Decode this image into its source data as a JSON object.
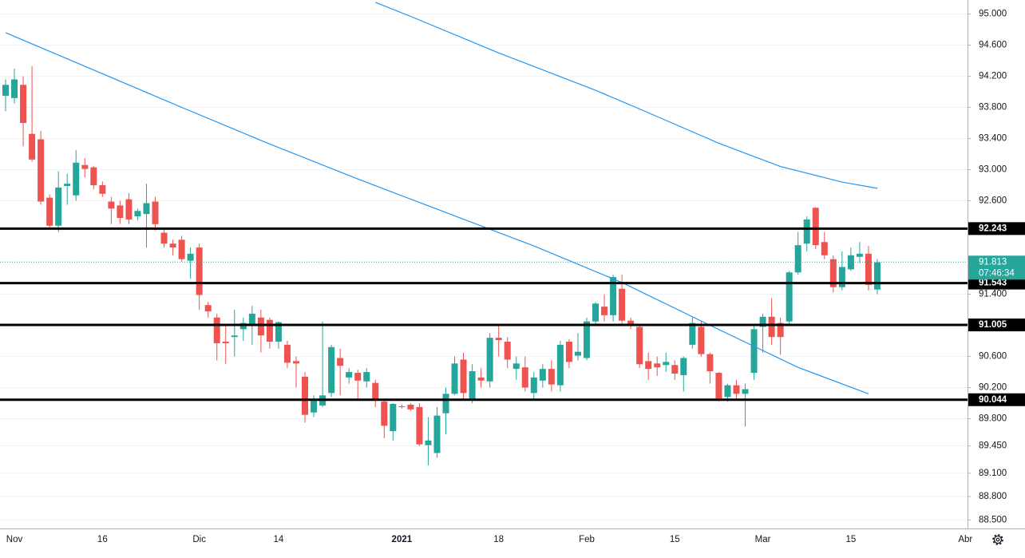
{
  "chart_data": {
    "type": "candlestick",
    "categories": [
      null,
      "Nov",
      null,
      null,
      null,
      null,
      null,
      null,
      null,
      null,
      null,
      "16",
      null,
      null,
      null,
      null,
      null,
      null,
      null,
      null,
      null,
      null,
      "Dic",
      null,
      null,
      null,
      null,
      null,
      null,
      null,
      null,
      "14",
      null,
      null,
      null,
      null,
      null,
      null,
      null,
      null,
      null,
      null,
      null,
      null,
      null,
      "2021",
      null,
      null,
      null,
      null,
      null,
      null,
      null,
      null,
      null,
      null,
      "18",
      null,
      null,
      null,
      null,
      null,
      null,
      null,
      null,
      null,
      "Feb",
      null,
      null,
      null,
      null,
      null,
      null,
      null,
      null,
      null,
      "15",
      null,
      null,
      null,
      null,
      null,
      null,
      null,
      null,
      null,
      "Mar",
      null,
      null,
      null,
      null,
      null,
      null,
      null,
      null,
      null,
      "15",
      null,
      null,
      null,
      null,
      null,
      null,
      null,
      null,
      null,
      null,
      null,
      null,
      "Abr"
    ],
    "open": [
      93.95,
      93.92,
      94.09,
      93.46,
      93.39,
      92.64,
      92.28,
      92.79,
      92.67,
      93.06,
      93.03,
      92.8,
      92.59,
      92.54,
      92.62,
      92.4,
      92.43,
      92.59,
      92.19,
      92.05,
      92.1,
      91.83,
      92.0,
      91.26,
      91.1,
      90.79,
      90.85,
      90.95,
      91.0,
      91.1,
      91.07,
      90.79,
      90.75,
      90.54,
      90.34,
      89.88,
      89.97,
      90.13,
      90.58,
      90.33,
      90.39,
      90.28,
      90.26,
      90.02,
      89.64,
      89.96,
      89.98,
      89.95,
      89.46,
      89.36,
      89.87,
      90.12,
      90.56,
      90.05,
      90.33,
      90.28,
      90.84,
      90.79,
      90.44,
      90.46,
      90.13,
      90.29,
      90.44,
      90.23,
      90.79,
      90.61,
      90.58,
      91.05,
      91.24,
      91.13,
      91.47,
      91.06,
      90.98,
      90.54,
      90.51,
      90.49,
      90.49,
      90.36,
      90.75,
      90.98,
      90.63,
      90.39,
      90.08,
      90.23,
      90.12,
      90.39,
      90.98,
      91.11,
      91.03,
      91.05,
      91.68,
      92.05,
      92.51,
      92.07,
      91.85,
      91.49,
      91.72,
      91.88,
      91.92,
      91.46,
      null,
      null,
      null,
      null,
      null,
      null,
      null,
      null,
      null,
      null
    ],
    "high": [
      94.16,
      94.3,
      94.2,
      94.33,
      93.5,
      92.68,
      92.98,
      92.95,
      93.25,
      93.15,
      93.05,
      92.85,
      92.65,
      92.6,
      92.7,
      92.5,
      92.82,
      92.65,
      92.25,
      92.1,
      92.15,
      92.0,
      92.05,
      91.3,
      91.15,
      91.0,
      91.2,
      91.1,
      91.25,
      91.2,
      91.1,
      91.05,
      90.8,
      90.6,
      90.4,
      90.1,
      91.05,
      90.75,
      90.7,
      90.45,
      90.43,
      90.45,
      90.3,
      90.05,
      90.0,
      89.98,
      90.0,
      90.0,
      89.82,
      89.95,
      90.2,
      90.6,
      90.65,
      90.5,
      90.45,
      90.9,
      91.0,
      90.85,
      90.6,
      90.6,
      90.4,
      90.5,
      90.55,
      90.8,
      90.82,
      90.9,
      91.1,
      91.3,
      91.4,
      91.65,
      91.65,
      91.1,
      91.0,
      90.65,
      90.6,
      90.65,
      90.55,
      90.6,
      91.1,
      91.05,
      90.65,
      90.4,
      90.25,
      90.3,
      90.25,
      91.0,
      91.15,
      91.35,
      91.1,
      91.7,
      92.2,
      92.4,
      92.52,
      92.2,
      91.9,
      91.95,
      92.0,
      92.07,
      92.02,
      91.85,
      null,
      null,
      null,
      null,
      null,
      null,
      null,
      null,
      null,
      null
    ],
    "low": [
      93.75,
      93.85,
      93.3,
      93.1,
      92.55,
      92.25,
      92.2,
      92.55,
      92.6,
      92.9,
      92.75,
      92.65,
      92.3,
      92.3,
      92.3,
      92.35,
      92.0,
      92.22,
      92.0,
      91.9,
      91.82,
      91.6,
      91.2,
      91.1,
      90.55,
      90.5,
      90.6,
      90.8,
      90.75,
      90.65,
      90.7,
      90.7,
      90.45,
      90.2,
      89.75,
      89.82,
      89.95,
      90.08,
      90.1,
      90.25,
      90.05,
      90.2,
      89.95,
      89.55,
      89.52,
      89.93,
      89.9,
      89.45,
      89.2,
      89.3,
      89.6,
      90.1,
      90.05,
      90.0,
      90.2,
      90.2,
      90.6,
      90.45,
      90.3,
      90.15,
      90.05,
      90.2,
      90.15,
      90.15,
      90.45,
      90.55,
      90.55,
      91.0,
      91.05,
      91.05,
      91.0,
      90.95,
      90.45,
      90.3,
      90.35,
      90.4,
      90.3,
      90.15,
      90.7,
      90.6,
      90.25,
      90.02,
      90.02,
      90.05,
      89.7,
      90.3,
      90.65,
      90.75,
      90.62,
      91.0,
      91.65,
      91.95,
      91.98,
      91.85,
      91.42,
      91.45,
      91.7,
      91.8,
      91.45,
      91.4,
      null,
      null,
      null,
      null,
      null,
      null,
      null,
      null,
      null,
      null
    ],
    "close": [
      94.09,
      94.16,
      93.6,
      93.13,
      92.59,
      92.28,
      92.77,
      92.82,
      93.09,
      93.01,
      92.8,
      92.69,
      92.5,
      92.38,
      92.36,
      92.47,
      92.57,
      92.3,
      92.05,
      92.0,
      91.85,
      91.92,
      91.39,
      91.18,
      90.77,
      90.77,
      90.87,
      91.03,
      91.15,
      90.87,
      90.79,
      91.04,
      90.52,
      90.51,
      89.85,
      90.05,
      90.1,
      90.72,
      90.48,
      90.4,
      90.29,
      90.4,
      90.05,
      89.71,
      89.99,
      89.95,
      89.92,
      89.47,
      89.52,
      89.84,
      90.12,
      90.51,
      90.13,
      90.41,
      90.29,
      90.84,
      90.81,
      90.56,
      90.51,
      90.2,
      90.33,
      90.44,
      90.24,
      90.75,
      90.53,
      90.66,
      91.05,
      91.28,
      91.13,
      91.62,
      91.06,
      91.0,
      90.5,
      90.44,
      90.46,
      90.53,
      90.38,
      90.58,
      91.03,
      90.63,
      90.41,
      90.06,
      90.23,
      90.12,
      90.18,
      90.95,
      91.11,
      90.85,
      90.85,
      91.68,
      92.03,
      92.36,
      92.03,
      91.9,
      91.49,
      91.75,
      91.9,
      91.92,
      91.52,
      91.81,
      null,
      null,
      null,
      null,
      null,
      null,
      null,
      null,
      null,
      null
    ],
    "up_color": "#26a69a",
    "down_color": "#ef5350",
    "series": [
      {
        "color": "#2196f3",
        "x": [
          0,
          10,
          20,
          30,
          40,
          50,
          60,
          70,
          80,
          90,
          98
        ],
        "values": [
          94.76,
          94.28,
          93.8,
          93.33,
          92.88,
          92.45,
          92.02,
          91.55,
          91.0,
          90.46,
          90.12
        ]
      },
      {
        "color": "#2196f3",
        "x": [
          42,
          46,
          56,
          67,
          72,
          81,
          88,
          95,
          99
        ],
        "values": [
          95.15,
          94.97,
          94.5,
          94.02,
          93.78,
          93.34,
          93.04,
          92.84,
          92.76
        ]
      }
    ],
    "levels": [
      92.243,
      91.543,
      91.005,
      90.044
    ],
    "last_price": 91.813,
    "countdown": "07:46:34",
    "ylim": [
      88.39,
      95.18
    ],
    "yticks": [
      {
        "value": 95,
        "label": "95.000"
      },
      {
        "value": 94.6,
        "label": "94.600"
      },
      {
        "value": 94.2,
        "label": "94.200"
      },
      {
        "value": 93.8,
        "label": "93.800"
      },
      {
        "value": 93.4,
        "label": "93.400"
      },
      {
        "value": 93,
        "label": "93.000"
      },
      {
        "value": 92.6,
        "label": "92.600"
      },
      {
        "value": 91.4,
        "label": "91.400"
      },
      {
        "value": 90.6,
        "label": "90.600"
      },
      {
        "value": 90.2,
        "label": "90.200"
      },
      {
        "value": 89.8,
        "label": "89.800"
      },
      {
        "value": 89.45,
        "label": "89.450"
      },
      {
        "value": 89.1,
        "label": "89.100"
      },
      {
        "value": 88.8,
        "label": "88.800"
      },
      {
        "value": 88.5,
        "label": "88.500"
      }
    ],
    "grid": true
  }
}
